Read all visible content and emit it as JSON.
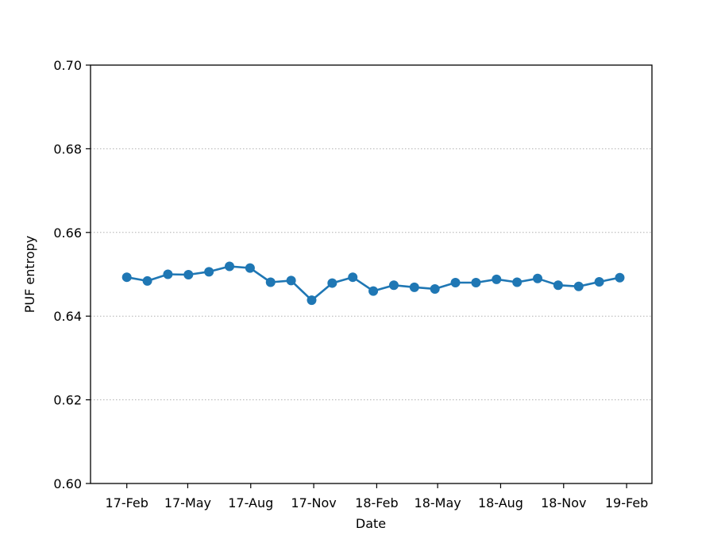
{
  "chart_data": {
    "type": "line",
    "title": "",
    "xlabel": "Date",
    "ylabel": "PUF entropy",
    "ylim": [
      0.6,
      0.7
    ],
    "yticks": [
      0.6,
      0.62,
      0.64,
      0.66,
      0.68,
      0.7
    ],
    "ytick_labels": [
      "0.60",
      "0.62",
      "0.64",
      "0.66",
      "0.68",
      "0.70"
    ],
    "xlim": [
      "2016-12-10",
      "2019-03-10"
    ],
    "xticks": [
      "2017-02-01",
      "2017-05-01",
      "2017-08-01",
      "2017-11-01",
      "2018-02-01",
      "2018-05-01",
      "2018-08-01",
      "2018-11-01",
      "2019-02-01"
    ],
    "xtick_labels": [
      "17-Feb",
      "17-May",
      "17-Aug",
      "17-Nov",
      "18-Feb",
      "18-May",
      "18-Aug",
      "18-Nov",
      "19-Feb"
    ],
    "grid": "horizontal dotted",
    "line_color": "#1f77b4",
    "gridline_color": "#b0b0b0",
    "series": [
      {
        "x": [
          "2017-02-01",
          "2017-03-03",
          "2017-04-02",
          "2017-05-02",
          "2017-06-01",
          "2017-07-01",
          "2017-07-31",
          "2017-08-30",
          "2017-09-29",
          "2017-10-29",
          "2017-11-28",
          "2017-12-28",
          "2018-01-27",
          "2018-02-26",
          "2018-03-28",
          "2018-04-27",
          "2018-05-27",
          "2018-06-26",
          "2018-07-26",
          "2018-08-25",
          "2018-09-24",
          "2018-10-24",
          "2018-11-23",
          "2018-12-23",
          "2019-01-22",
          "2019-02-21"
        ],
        "values": [
          0.6493,
          0.6484,
          0.65,
          0.6499,
          0.6506,
          0.6519,
          0.6515,
          0.6481,
          0.6485,
          0.6438,
          0.6479,
          0.6493,
          0.646,
          0.6474,
          0.6469,
          0.6465,
          0.648,
          0.648,
          0.6488,
          0.6481,
          0.649,
          0.6474,
          0.6471,
          0.6482,
          0.6492,
          null
        ]
      }
    ]
  }
}
